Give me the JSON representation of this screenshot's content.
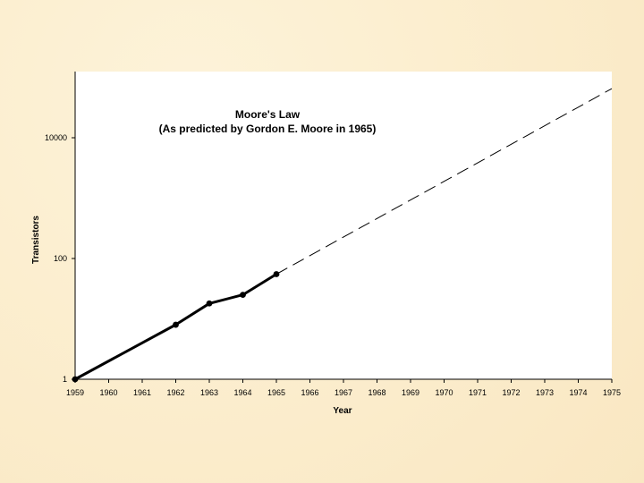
{
  "chart_data": {
    "type": "line",
    "title": "Moore's Law",
    "subtitle": "(As predicted by Gordon E. Moore in 1965)",
    "xlabel": "Year",
    "ylabel": "Transistors",
    "xlim": [
      1959,
      1975
    ],
    "ylim": [
      1,
      100000
    ],
    "y_scale": "log",
    "x_ticks": [
      1959,
      1960,
      1961,
      1962,
      1963,
      1964,
      1965,
      1966,
      1967,
      1968,
      1969,
      1970,
      1971,
      1972,
      1973,
      1974,
      1975
    ],
    "y_ticks": [
      {
        "value": 1,
        "label": "1"
      },
      {
        "value": 100,
        "label": "100"
      },
      {
        "value": 10000,
        "label": "10000"
      }
    ],
    "grid": false,
    "series": [
      {
        "style": "solid-markers",
        "x": [
          1959,
          1962,
          1963,
          1964,
          1965
        ],
        "y": [
          1,
          8,
          18,
          25,
          55
        ]
      },
      {
        "style": "dashed",
        "x": [
          1965,
          1975
        ],
        "y": [
          55,
          65000
        ]
      }
    ]
  }
}
